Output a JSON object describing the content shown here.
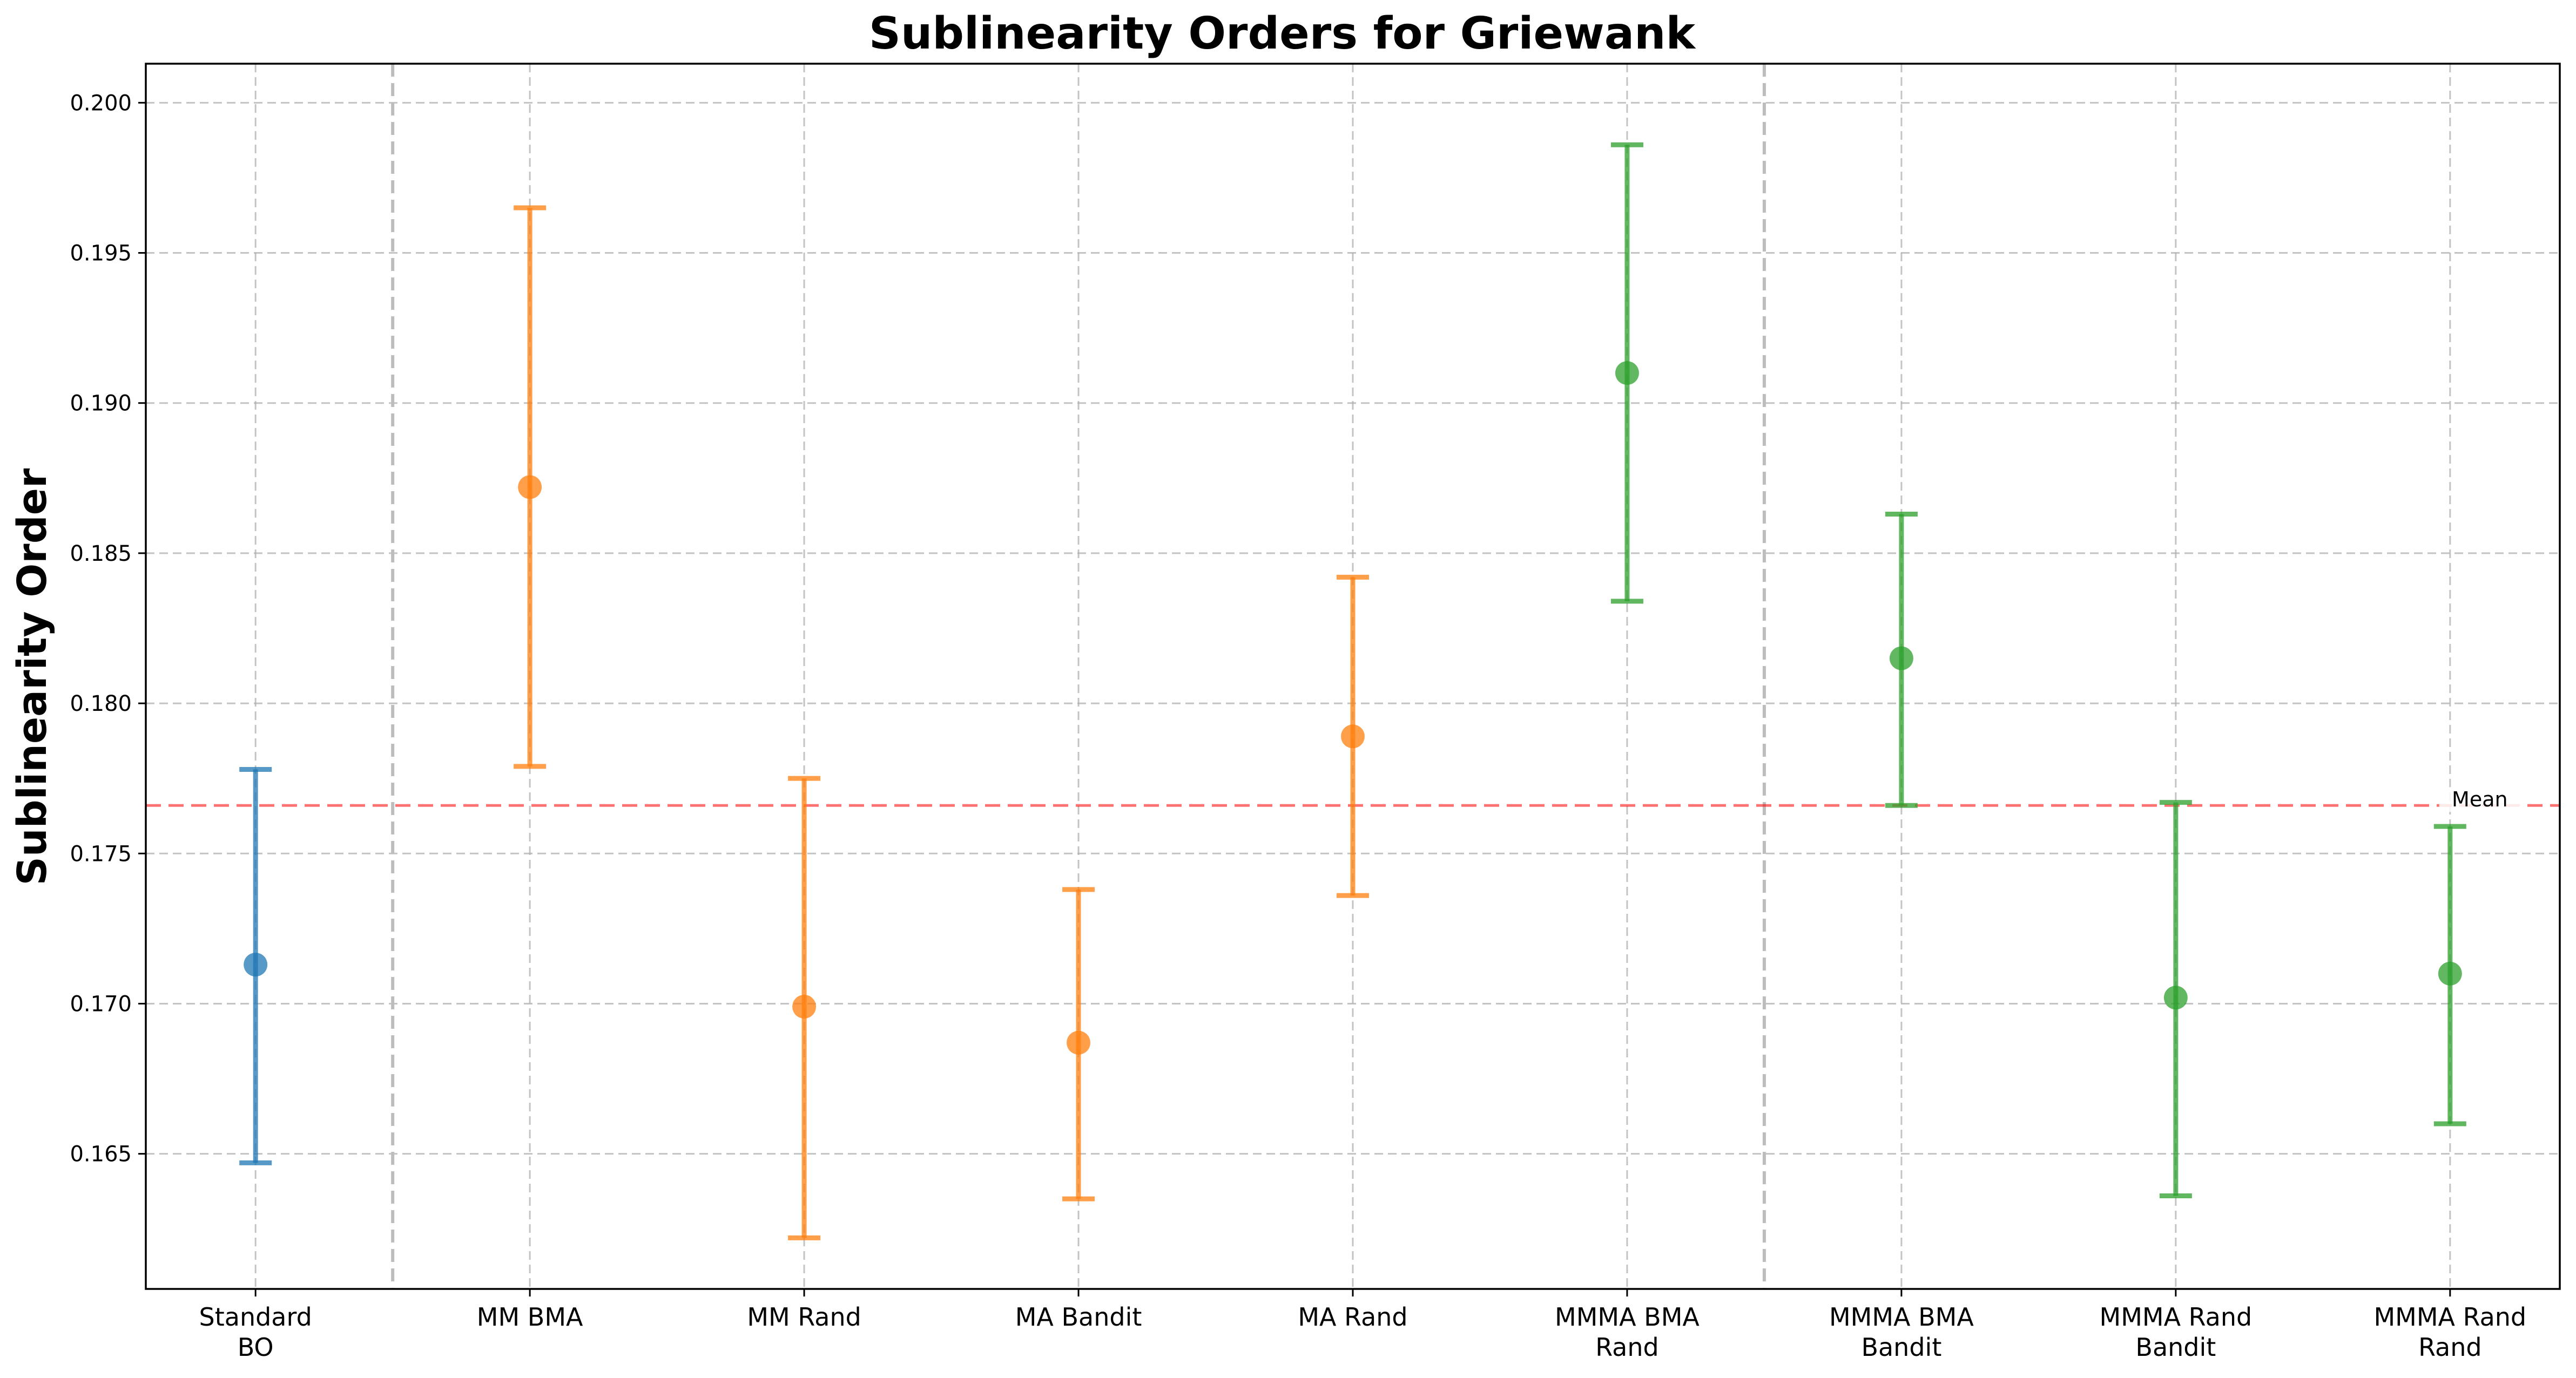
{
  "chart_data": {
    "type": "scatter",
    "title": "Sublinearity Orders for Griewank",
    "xlabel": "",
    "ylabel": "Sublinearity Order",
    "ylim": [
      0.1605,
      0.2013
    ],
    "yticks": [
      "0.165",
      "0.170",
      "0.175",
      "0.180",
      "0.185",
      "0.190",
      "0.195",
      "0.200"
    ],
    "grid": true,
    "categories": [
      [
        "Standard",
        "BO"
      ],
      [
        "MM BMA"
      ],
      [
        "MM Rand"
      ],
      [
        "MA Bandit"
      ],
      [
        "MA Rand"
      ],
      [
        "MMMA BMA",
        "Rand"
      ],
      [
        "MMMA BMA",
        "Bandit"
      ],
      [
        "MMMA Rand",
        "Bandit"
      ],
      [
        "MMMA Rand",
        "Rand"
      ]
    ],
    "points": [
      {
        "mean": 0.1713,
        "lower": 0.1647,
        "upper": 0.1778,
        "color": "#1f77b4"
      },
      {
        "mean": 0.1872,
        "lower": 0.1779,
        "upper": 0.1965,
        "color": "#ff7f0e"
      },
      {
        "mean": 0.1699,
        "lower": 0.1622,
        "upper": 0.1775,
        "color": "#ff7f0e"
      },
      {
        "mean": 0.1687,
        "lower": 0.1635,
        "upper": 0.1738,
        "color": "#ff7f0e"
      },
      {
        "mean": 0.1789,
        "lower": 0.1736,
        "upper": 0.1842,
        "color": "#ff7f0e"
      },
      {
        "mean": 0.191,
        "lower": 0.1834,
        "upper": 0.1986,
        "color": "#2ca02c"
      },
      {
        "mean": 0.1815,
        "lower": 0.1766,
        "upper": 0.1863,
        "color": "#2ca02c"
      },
      {
        "mean": 0.1702,
        "lower": 0.1636,
        "upper": 0.1767,
        "color": "#2ca02c"
      },
      {
        "mean": 0.171,
        "lower": 0.166,
        "upper": 0.1759,
        "color": "#2ca02c"
      }
    ],
    "group_separators_after": [
      0,
      5
    ],
    "mean_line": {
      "value": 0.1766,
      "label": "Mean",
      "color": "#ff0000"
    }
  }
}
